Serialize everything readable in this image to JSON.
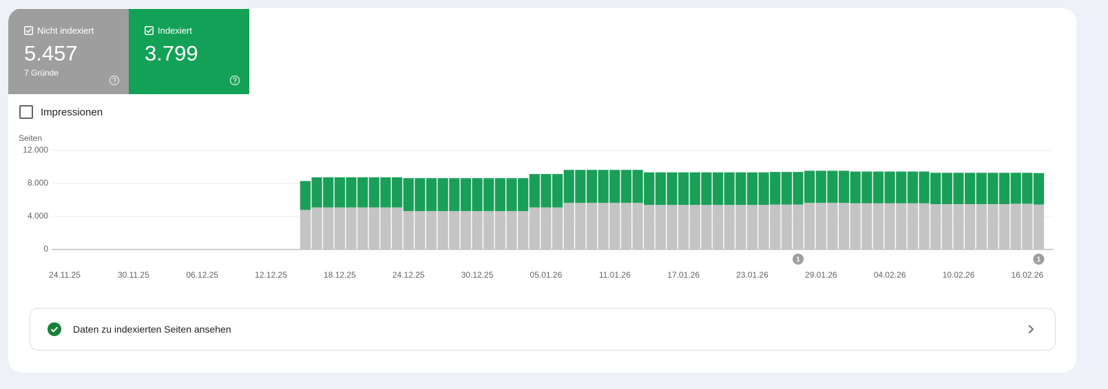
{
  "cards": [
    {
      "value": "5.457",
      "note": "7 Gründe"
    },
    {
      "value": "3.799"
    }
  ],
  "impressions_checkbox": "Impressionen",
  "chart_data": {
    "type": "stacked-bar",
    "ylabel": "Seiten",
    "categories": [
      "24.11.25",
      null,
      null,
      null,
      null,
      null,
      "30.11.25",
      null,
      null,
      null,
      null,
      null,
      "06.12.25",
      null,
      null,
      null,
      null,
      null,
      "12.12.25",
      null,
      null,
      null,
      null,
      null,
      "18.12.25",
      null,
      null,
      null,
      null,
      null,
      "24.12.25",
      null,
      null,
      null,
      null,
      null,
      "30.12.25",
      null,
      null,
      null,
      null,
      null,
      "05.01.26",
      null,
      null,
      null,
      null,
      null,
      "11.01.26",
      null,
      null,
      null,
      null,
      null,
      "17.01.26",
      null,
      null,
      null,
      null,
      null,
      "23.01.26",
      null,
      null,
      null,
      null,
      null,
      "29.01.26",
      null,
      null,
      null,
      null,
      null,
      "04.02.26",
      null,
      null,
      null,
      null,
      null,
      "10.02.26",
      null,
      null,
      null,
      null,
      null,
      "16.02.26",
      null
    ],
    "series": [
      {
        "name": "Nicht indexiert",
        "color": "#c4c4c4",
        "values": [
          null,
          null,
          null,
          null,
          null,
          null,
          null,
          null,
          null,
          null,
          null,
          null,
          null,
          null,
          null,
          null,
          null,
          null,
          null,
          null,
          null,
          4800,
          5100,
          5100,
          5100,
          5100,
          5100,
          5100,
          5100,
          5100,
          4650,
          4650,
          4650,
          4650,
          4650,
          4650,
          4650,
          4650,
          4650,
          4650,
          4650,
          5100,
          5100,
          5100,
          5650,
          5650,
          5650,
          5650,
          5650,
          5650,
          5650,
          5400,
          5400,
          5400,
          5400,
          5400,
          5400,
          5400,
          5400,
          5400,
          5400,
          5400,
          5450,
          5450,
          5450,
          5650,
          5650,
          5650,
          5650,
          5600,
          5600,
          5600,
          5600,
          5600,
          5600,
          5600,
          5500,
          5500,
          5500,
          5500,
          5500,
          5500,
          5500,
          5550,
          5550,
          5457
        ]
      },
      {
        "name": "Indexiert",
        "color": "#1a9f58",
        "values": [
          null,
          null,
          null,
          null,
          null,
          null,
          null,
          null,
          null,
          null,
          null,
          null,
          null,
          null,
          null,
          null,
          null,
          null,
          null,
          null,
          null,
          3500,
          3650,
          3650,
          3650,
          3650,
          3650,
          3650,
          3650,
          3650,
          4000,
          4000,
          4000,
          4000,
          4000,
          4000,
          4000,
          4000,
          4000,
          4000,
          4000,
          4050,
          4050,
          4050,
          4000,
          4000,
          4000,
          4000,
          4000,
          4000,
          4000,
          3950,
          3950,
          3950,
          3950,
          3950,
          3950,
          3950,
          3950,
          3950,
          3950,
          3950,
          3950,
          3950,
          3950,
          3900,
          3900,
          3900,
          3900,
          3850,
          3850,
          3850,
          3850,
          3850,
          3850,
          3850,
          3800,
          3800,
          3800,
          3800,
          3800,
          3800,
          3800,
          3750,
          3750,
          3799
        ]
      }
    ],
    "ylim": [
      0,
      12000
    ],
    "yticks": [
      0,
      {
        "value": 4000,
        "label": "4.000"
      },
      {
        "value": 8000,
        "label": "8.000"
      },
      {
        "value": 12000,
        "label": "12.000"
      }
    ],
    "grid": true,
    "annotations": [
      {
        "at": 64,
        "text": "1"
      },
      {
        "at": 85,
        "text": "1"
      }
    ]
  },
  "link": "Daten zu indexierten Seiten ansehen"
}
